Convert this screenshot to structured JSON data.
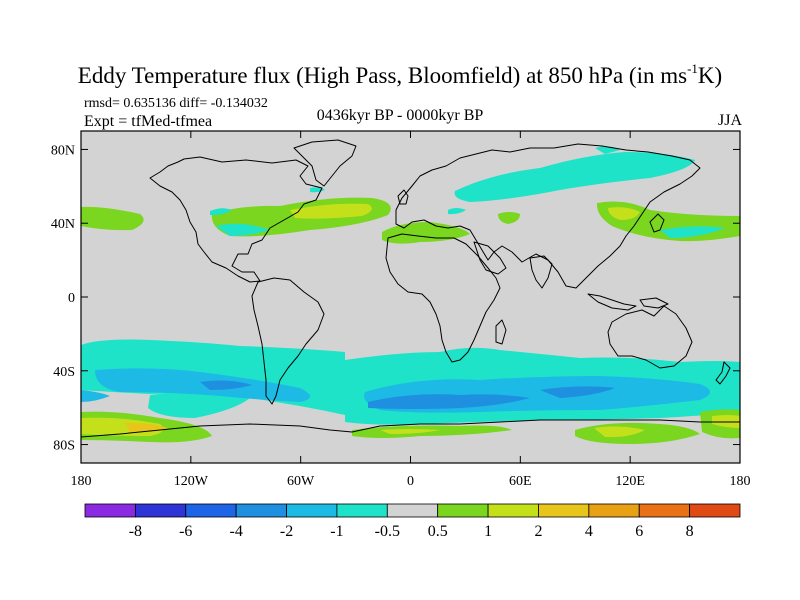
{
  "header": {
    "title_main": "Eddy Temperature flux (High Pass, Bloomfield) at 850 hPa (in ms",
    "title_sup": "-1",
    "title_end": "K)",
    "stats": "rmsd= 0.635136 diff= -0.134032",
    "expt": "Expt = tfMed-tfmea",
    "period": "0436kyr BP - 0000kyr BP",
    "season": "JJA"
  },
  "map": {
    "ocean_color": "#d3d3d3",
    "lat_labels": [
      {
        "text": "80N",
        "lat": 80
      },
      {
        "text": "40N",
        "lat": 40
      },
      {
        "text": "0",
        "lat": 0
      },
      {
        "text": "40S",
        "lat": -40
      },
      {
        "text": "80S",
        "lat": -80
      }
    ],
    "lon_labels": [
      {
        "text": "180",
        "lon": -180
      },
      {
        "text": "120W",
        "lon": -120
      },
      {
        "text": "60W",
        "lon": -60
      },
      {
        "text": "0",
        "lon": 0
      },
      {
        "text": "60E",
        "lon": 60
      },
      {
        "text": "120E",
        "lon": 120
      },
      {
        "text": "180",
        "lon": 180
      }
    ]
  },
  "colorbar": {
    "colors": [
      "#8a2be2",
      "#2f34d6",
      "#1e64e6",
      "#1f8fe0",
      "#1dbae5",
      "#1ee3c9",
      "#d3d3d3",
      "#7ad61e",
      "#c4e01a",
      "#e8c51a",
      "#e8a015",
      "#e87215",
      "#e04a14"
    ],
    "labels": [
      "-8",
      "-6",
      "-4",
      "-2",
      "-1",
      "-0.5",
      "0.5",
      "1",
      "2",
      "4",
      "6",
      "8"
    ]
  }
}
